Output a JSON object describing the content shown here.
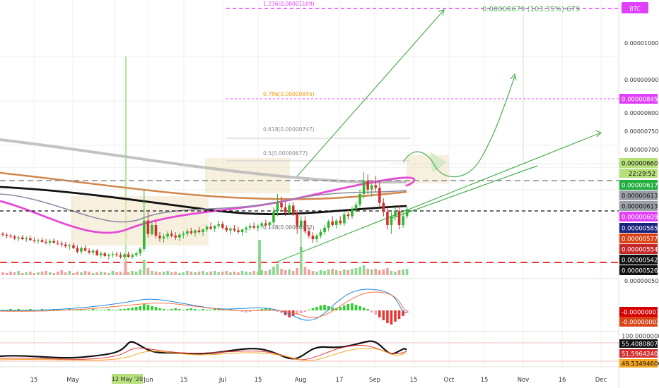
{
  "chart_data": {
    "type": "candlestick",
    "symbol": "BTC",
    "countdown": "22:29:52",
    "x_tick_labels": [
      "15",
      "May",
      "12 May '20",
      "Jun",
      "15",
      "Jul",
      "15",
      "Aug",
      "17",
      "Sep",
      "15",
      "Oct",
      "15",
      "Nov",
      "16",
      "Dec"
    ],
    "price_axis_labels": [
      "0.00001000",
      "0.00000900",
      "0.00000800",
      "0.00000750",
      "0.00000700",
      "0.00000050"
    ],
    "fib_labels": [
      "1.236(0.00001109)",
      "0.786(0.00000845)",
      "0.618(0.00000747)",
      "0.5(0.00000677)",
      "0.148(0.00000472)"
    ],
    "target_label": "0.00008679 (103.35%) 679",
    "price_tags": [
      {
        "text": "0.00001109",
        "bg": "#e040fb",
        "fg": "#ffffff"
      },
      {
        "text": "0.00000845",
        "bg": "#e040fb",
        "fg": "#ffffff"
      },
      {
        "text": "0.00000660",
        "bg": "#b7e07a",
        "fg": "#111111"
      },
      {
        "text": "0.00000617",
        "bg": "#1fae3c",
        "fg": "#ffffff"
      },
      {
        "text": "0.00000613",
        "bg": "#9aa0a6",
        "fg": "#111111"
      },
      {
        "text": "0.00000613",
        "bg": "#9aa0a6",
        "fg": "#111111"
      },
      {
        "text": "0.00000609",
        "bg": "#e040fb",
        "fg": "#ffffff"
      },
      {
        "text": "0.00000585",
        "bg": "#1a237e",
        "fg": "#ffffff"
      },
      {
        "text": "0.00000577",
        "bg": "#d84315",
        "fg": "#ffffff"
      },
      {
        "text": "0.00000554",
        "bg": "#c62828",
        "fg": "#ffffff"
      },
      {
        "text": "0.00000542",
        "bg": "#111111",
        "fg": "#ffffff"
      },
      {
        "text": "0.00000526",
        "bg": "#111111",
        "fg": "#ffffff"
      }
    ],
    "macd_labels": [
      {
        "text": "-0.00000001",
        "bg": "#d50000",
        "fg": "#ffffff"
      },
      {
        "text": "-0.00000002",
        "bg": "#d84315",
        "fg": "#ffffff"
      }
    ],
    "rsi_labels": [
      {
        "text": "100.00000000",
        "bg": "#ffffff",
        "fg": "#444444"
      },
      {
        "text": "55.40808070",
        "bg": "#111111",
        "fg": "#ffffff"
      },
      {
        "text": "51.59642401",
        "bg": "#d32f2f",
        "fg": "#ffffff"
      },
      {
        "text": "49.53494606",
        "bg": "#f5a623",
        "fg": "#111111"
      }
    ],
    "candles": [
      [
        600,
        604,
        594,
        598
      ],
      [
        598,
        602,
        590,
        596
      ],
      [
        596,
        600,
        590,
        594
      ],
      [
        594,
        598,
        586,
        590
      ],
      [
        590,
        596,
        584,
        592
      ],
      [
        592,
        598,
        586,
        588
      ],
      [
        588,
        594,
        582,
        590
      ],
      [
        590,
        596,
        584,
        586
      ],
      [
        586,
        592,
        580,
        584
      ],
      [
        584,
        590,
        578,
        586
      ],
      [
        586,
        592,
        580,
        582
      ],
      [
        582,
        588,
        576,
        580
      ],
      [
        580,
        588,
        574,
        584
      ],
      [
        584,
        590,
        578,
        580
      ],
      [
        580,
        586,
        574,
        578
      ],
      [
        578,
        584,
        570,
        576
      ],
      [
        576,
        582,
        568,
        572
      ],
      [
        572,
        578,
        564,
        574
      ],
      [
        574,
        580,
        566,
        568
      ],
      [
        568,
        574,
        556,
        560
      ],
      [
        560,
        572,
        554,
        568
      ],
      [
        568,
        574,
        560,
        562
      ],
      [
        562,
        568,
        554,
        558
      ],
      [
        558,
        566,
        552,
        562
      ],
      [
        562,
        566,
        550,
        552
      ],
      [
        552,
        560,
        546,
        556
      ],
      [
        556,
        560,
        548,
        550
      ],
      [
        550,
        556,
        542,
        552
      ],
      [
        552,
        560,
        546,
        554
      ],
      [
        554,
        560,
        548,
        552
      ],
      [
        552,
        558,
        544,
        548
      ],
      [
        548,
        556,
        542,
        554
      ],
      [
        554,
        560,
        546,
        548
      ],
      [
        548,
        556,
        544,
        552
      ],
      [
        552,
        560,
        548,
        556
      ],
      [
        556,
        570,
        550,
        566
      ],
      [
        566,
        700,
        560,
        630
      ],
      [
        630,
        650,
        592,
        600
      ],
      [
        600,
        628,
        596,
        620
      ],
      [
        620,
        632,
        590,
        596
      ],
      [
        596,
        604,
        582,
        590
      ],
      [
        590,
        600,
        580,
        594
      ],
      [
        594,
        606,
        588,
        600
      ],
      [
        600,
        608,
        592,
        596
      ],
      [
        596,
        604,
        586,
        592
      ],
      [
        592,
        602,
        584,
        598
      ],
      [
        598,
        606,
        590,
        600
      ],
      [
        600,
        612,
        594,
        606
      ],
      [
        606,
        614,
        598,
        602
      ],
      [
        602,
        610,
        594,
        608
      ],
      [
        608,
        616,
        600,
        604
      ],
      [
        604,
        612,
        596,
        610
      ],
      [
        610,
        620,
        604,
        616
      ],
      [
        616,
        626,
        608,
        612
      ],
      [
        612,
        620,
        604,
        618
      ],
      [
        618,
        630,
        612,
        622
      ],
      [
        622,
        628,
        610,
        614
      ],
      [
        614,
        620,
        604,
        608
      ],
      [
        608,
        616,
        598,
        612
      ],
      [
        612,
        620,
        604,
        608
      ],
      [
        608,
        616,
        600,
        604
      ],
      [
        604,
        612,
        596,
        610
      ],
      [
        610,
        618,
        602,
        614
      ],
      [
        614,
        624,
        608,
        618
      ],
      [
        618,
        626,
        610,
        614
      ],
      [
        614,
        622,
        606,
        618
      ],
      [
        618,
        628,
        612,
        624
      ],
      [
        624,
        632,
        616,
        620
      ],
      [
        620,
        628,
        612,
        626
      ],
      [
        626,
        660,
        620,
        650
      ],
      [
        650,
        690,
        640,
        670
      ],
      [
        670,
        684,
        650,
        660
      ],
      [
        660,
        672,
        640,
        648
      ],
      [
        648,
        670,
        642,
        664
      ],
      [
        664,
        672,
        640,
        646
      ],
      [
        646,
        654,
        600,
        616
      ],
      [
        616,
        640,
        560,
        630
      ],
      [
        630,
        640,
        600,
        606
      ],
      [
        606,
        616,
        590,
        596
      ],
      [
        596,
        604,
        580,
        588
      ],
      [
        588,
        600,
        580,
        596
      ],
      [
        596,
        610,
        590,
        604
      ],
      [
        604,
        620,
        598,
        614
      ],
      [
        614,
        632,
        606,
        628
      ],
      [
        628,
        640,
        616,
        620
      ],
      [
        620,
        634,
        612,
        630
      ],
      [
        630,
        640,
        620,
        624
      ],
      [
        624,
        650,
        618,
        644
      ],
      [
        644,
        656,
        632,
        640
      ],
      [
        640,
        662,
        634,
        656
      ],
      [
        656,
        672,
        648,
        666
      ],
      [
        666,
        700,
        660,
        690
      ],
      [
        690,
        740,
        680,
        720
      ],
      [
        720,
        734,
        690,
        700
      ],
      [
        700,
        716,
        684,
        710
      ],
      [
        710,
        730,
        696,
        704
      ],
      [
        704,
        720,
        660,
        670
      ],
      [
        670,
        680,
        640,
        650
      ],
      [
        650,
        660,
        610,
        620
      ],
      [
        620,
        650,
        600,
        640
      ],
      [
        640,
        660,
        630,
        652
      ],
      [
        652,
        664,
        610,
        620
      ],
      [
        620,
        650,
        614,
        640
      ],
      [
        640,
        662,
        634,
        656
      ]
    ]
  }
}
